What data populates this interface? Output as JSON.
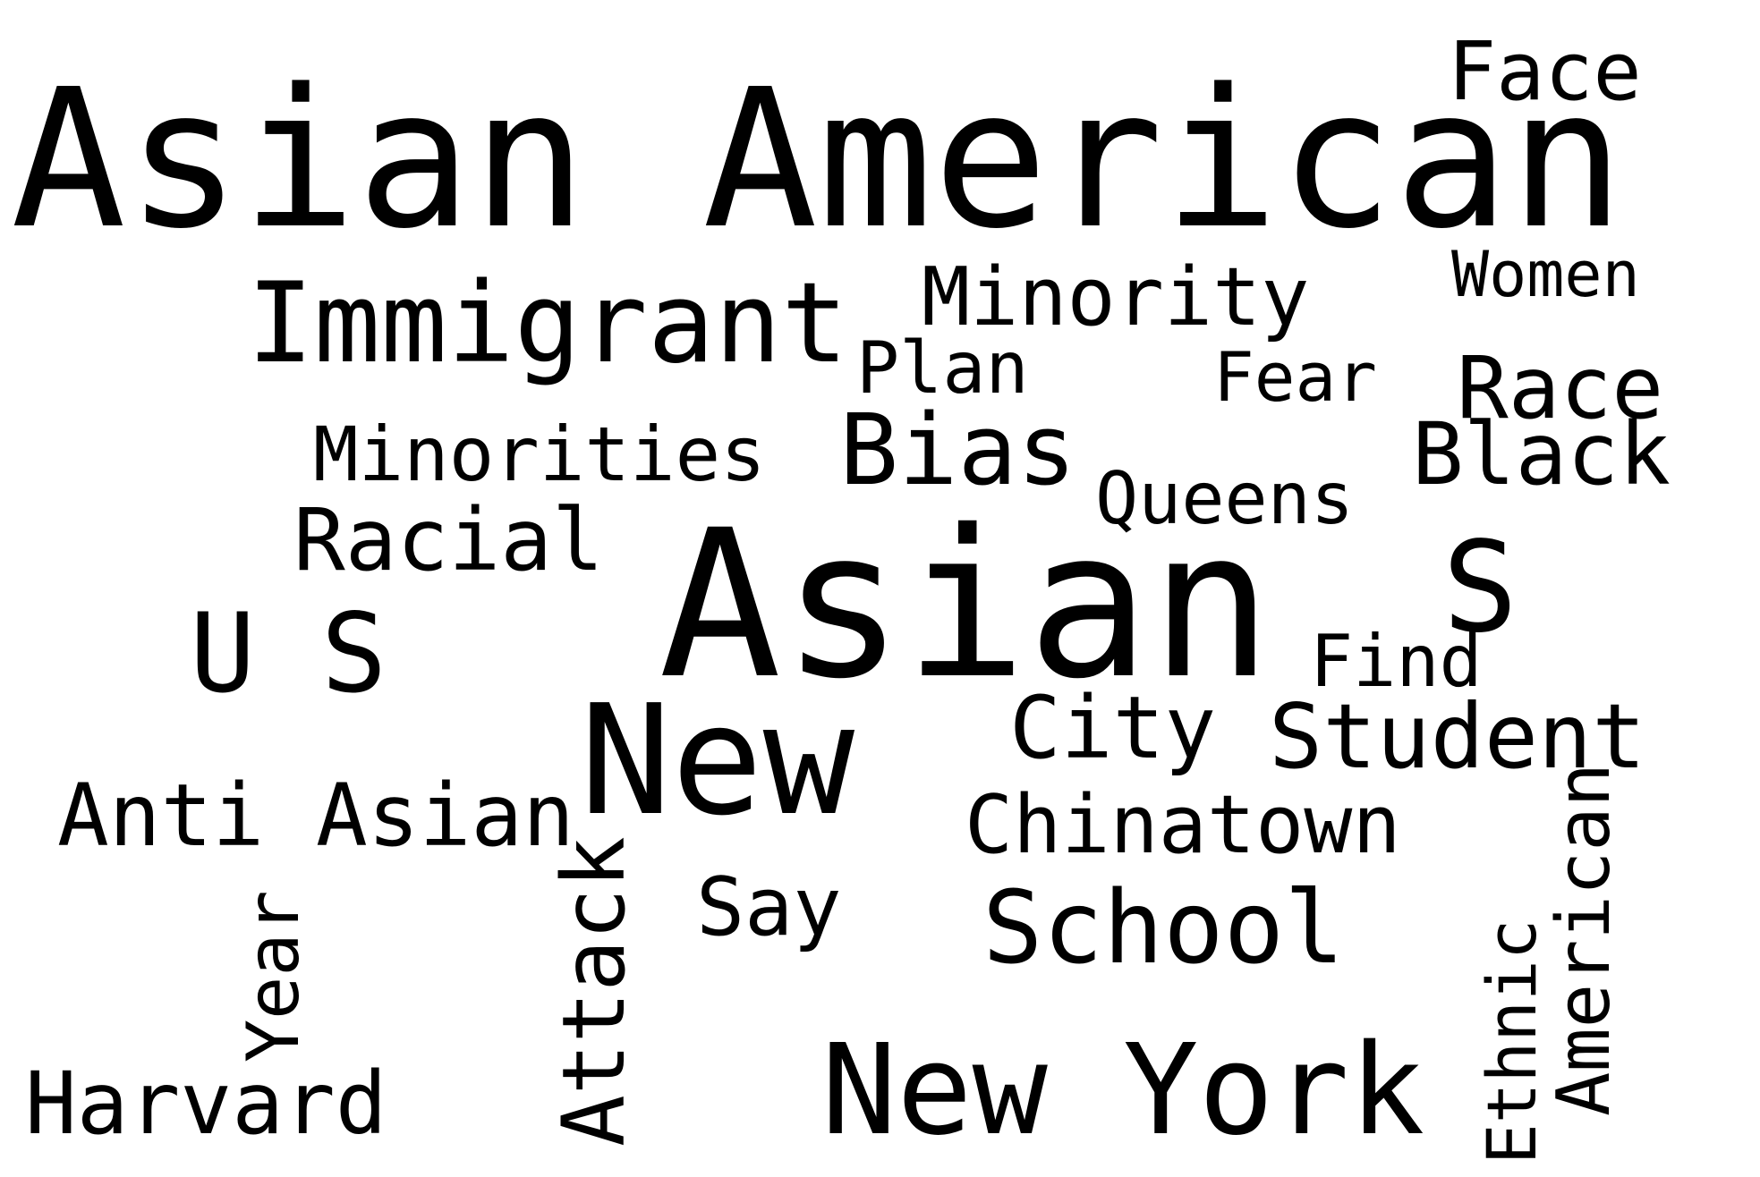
{
  "word_cloud": {
    "text_color": "#000000",
    "background_color": "#ffffff",
    "words": [
      {
        "key": "asian_american",
        "text": "Asian American"
      },
      {
        "key": "face",
        "text": "Face"
      },
      {
        "key": "women",
        "text": "Women"
      },
      {
        "key": "immigrant",
        "text": "Immigrant"
      },
      {
        "key": "minority",
        "text": "Minority"
      },
      {
        "key": "plan",
        "text": "Plan"
      },
      {
        "key": "fear",
        "text": "Fear"
      },
      {
        "key": "race",
        "text": "Race"
      },
      {
        "key": "minorities",
        "text": "Minorities"
      },
      {
        "key": "bias",
        "text": "Bias"
      },
      {
        "key": "black",
        "text": "Black"
      },
      {
        "key": "queens",
        "text": "Queens"
      },
      {
        "key": "racial",
        "text": "Racial"
      },
      {
        "key": "asian",
        "text": "Asian"
      },
      {
        "key": "s",
        "text": "S"
      },
      {
        "key": "u_s",
        "text": "U S"
      },
      {
        "key": "find",
        "text": "Find"
      },
      {
        "key": "new",
        "text": "New"
      },
      {
        "key": "city",
        "text": "City"
      },
      {
        "key": "student",
        "text": "Student"
      },
      {
        "key": "anti_asian",
        "text": "Anti Asian"
      },
      {
        "key": "chinatown",
        "text": "Chinatown"
      },
      {
        "key": "say",
        "text": "Say"
      },
      {
        "key": "school",
        "text": "School"
      },
      {
        "key": "year",
        "text": "Year"
      },
      {
        "key": "attack",
        "text": "Attack"
      },
      {
        "key": "american",
        "text": "American"
      },
      {
        "key": "ethnic",
        "text": "Ethnic"
      },
      {
        "key": "harvard",
        "text": "Harvard"
      },
      {
        "key": "new_york",
        "text": "New York"
      }
    ]
  }
}
